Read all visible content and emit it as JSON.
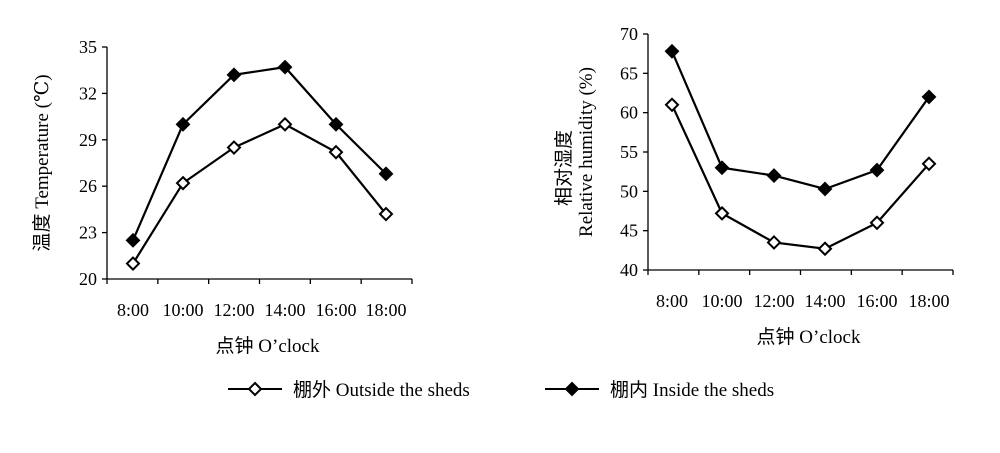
{
  "chart_data": [
    {
      "type": "line",
      "categories": [
        "8:00",
        "10:00",
        "12:00",
        "14:00",
        "16:00",
        "18:00"
      ],
      "xlabel": "点钟 O’clock",
      "ylabel": "温度 Temperature (℃)",
      "ylim": [
        20,
        35
      ],
      "yticks": [
        "20",
        "23",
        "26",
        "29",
        "32",
        "35"
      ],
      "grid": false,
      "series": [
        {
          "name": "棚外 Outside the sheds",
          "marker": "open-diamond",
          "values": [
            21.0,
            26.2,
            28.5,
            30.0,
            28.2,
            24.2
          ]
        },
        {
          "name": "棚内  Inside the sheds",
          "marker": "filled-diamond",
          "values": [
            22.5,
            30.0,
            33.2,
            33.7,
            30.0,
            26.8
          ]
        }
      ]
    },
    {
      "type": "line",
      "categories": [
        "8:00",
        "10:00",
        "12:00",
        "14:00",
        "16:00",
        "18:00"
      ],
      "xlabel": "点钟 O’clock",
      "ylabel": "相对湿度",
      "ylabel2": "Relative humidity (%)",
      "ylim": [
        40,
        70
      ],
      "yticks": [
        "40",
        "45",
        "50",
        "55",
        "60",
        "65",
        "70"
      ],
      "grid": false,
      "series": [
        {
          "name": "棚外 Outside the sheds",
          "marker": "open-diamond",
          "values": [
            61.0,
            47.2,
            43.5,
            42.7,
            46.0,
            53.5
          ]
        },
        {
          "name": "棚内  Inside the sheds",
          "marker": "filled-diamond",
          "values": [
            67.8,
            53.0,
            52.0,
            50.3,
            52.7,
            62.0
          ]
        }
      ]
    }
  ],
  "legend": {
    "placement": "bottom-center",
    "items": [
      {
        "label": "棚外 Outside the sheds",
        "marker": "open-diamond"
      },
      {
        "label": "棚内  Inside the sheds",
        "marker": "filled-diamond"
      }
    ]
  },
  "colors": {
    "line": "#000000",
    "open_marker_fill": "#ffffff",
    "filled_marker_fill": "#000000"
  }
}
